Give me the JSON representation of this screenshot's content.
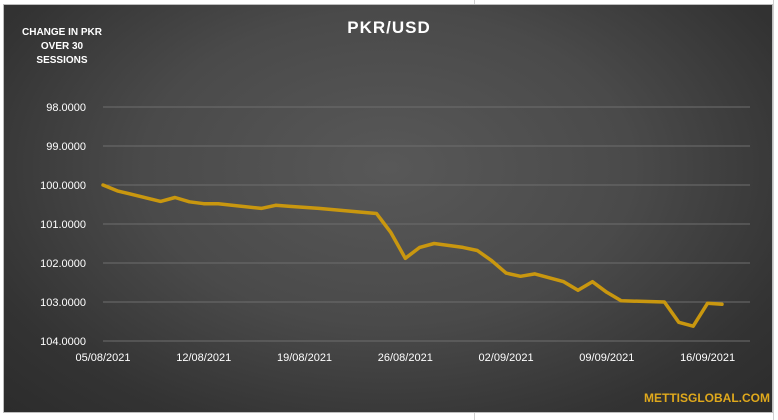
{
  "chart_data": {
    "type": "line",
    "title": "PKR/USD",
    "ylabel": "CHANGE IN PKR OVER 30 SESSIONS",
    "xlabel": "",
    "y_reversed": true,
    "ylim": [
      98.0,
      104.0
    ],
    "y_ticks": [
      "98.0000",
      "99.0000",
      "100.0000",
      "101.0000",
      "102.0000",
      "103.0000",
      "104.0000"
    ],
    "x_ticks": [
      "05/08/2021",
      "12/08/2021",
      "19/08/2021",
      "26/08/2021",
      "02/09/2021",
      "09/09/2021",
      "16/09/2021"
    ],
    "xlim": [
      "2021-08-05",
      "2021-09-17"
    ],
    "grid": "horizontal",
    "line_color": "#c9970f",
    "series": [
      {
        "name": "",
        "x": [
          "2021-08-05",
          "2021-08-06",
          "2021-08-09",
          "2021-08-10",
          "2021-08-11",
          "2021-08-12",
          "2021-08-13",
          "2021-08-16",
          "2021-08-17",
          "2021-08-18",
          "2021-08-20",
          "2021-08-23",
          "2021-08-24",
          "2021-08-25",
          "2021-08-26",
          "2021-08-27",
          "2021-08-28",
          "2021-08-30",
          "2021-08-31",
          "2021-09-01",
          "2021-09-02",
          "2021-09-03",
          "2021-09-04",
          "2021-09-06",
          "2021-09-07",
          "2021-09-08",
          "2021-09-09",
          "2021-09-10",
          "2021-09-13",
          "2021-09-14",
          "2021-09-15",
          "2021-09-16",
          "2021-09-17"
        ],
        "values": [
          100.0,
          100.15,
          100.42,
          100.32,
          100.43,
          100.48,
          100.48,
          100.6,
          100.52,
          100.55,
          100.6,
          100.7,
          100.73,
          101.22,
          101.88,
          101.6,
          101.5,
          101.6,
          101.68,
          101.94,
          102.26,
          102.34,
          102.28,
          102.48,
          102.7,
          102.48,
          102.75,
          102.97,
          103.0,
          103.52,
          103.62,
          103.03,
          103.06
        ]
      }
    ]
  },
  "brand_text": "METTISGLOBAL.COM"
}
